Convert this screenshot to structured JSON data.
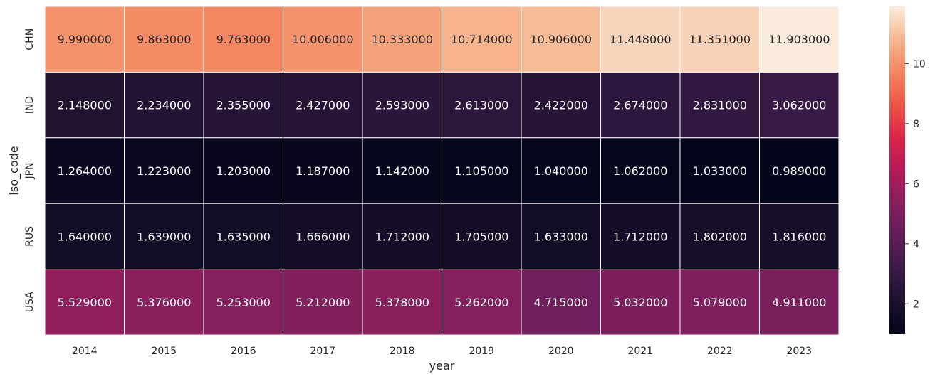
{
  "chart_data": {
    "type": "heatmap",
    "title": "",
    "xlabel": "year",
    "ylabel": "iso_code",
    "x_categories": [
      "2014",
      "2015",
      "2016",
      "2017",
      "2018",
      "2019",
      "2020",
      "2021",
      "2022",
      "2023"
    ],
    "y_categories": [
      "CHN",
      "IND",
      "JPN",
      "RUS",
      "USA"
    ],
    "values": [
      [
        9.99,
        9.863,
        9.763,
        10.006,
        10.333,
        10.714,
        10.906,
        11.448,
        11.351,
        11.903
      ],
      [
        2.148,
        2.234,
        2.355,
        2.427,
        2.593,
        2.613,
        2.422,
        2.674,
        2.831,
        3.062
      ],
      [
        1.264,
        1.223,
        1.203,
        1.187,
        1.142,
        1.105,
        1.04,
        1.062,
        1.033,
        0.989
      ],
      [
        1.64,
        1.639,
        1.635,
        1.666,
        1.712,
        1.705,
        1.633,
        1.712,
        1.802,
        1.816
      ],
      [
        5.529,
        5.376,
        5.253,
        5.212,
        5.378,
        5.262,
        4.715,
        5.032,
        5.079,
        4.911
      ]
    ],
    "cell_labels": [
      [
        "9.990000",
        "9.863000",
        "9.763000",
        "10.006000",
        "10.333000",
        "10.714000",
        "10.906000",
        "11.448000",
        "11.351000",
        "11.903000"
      ],
      [
        "2.148000",
        "2.234000",
        "2.355000",
        "2.427000",
        "2.593000",
        "2.613000",
        "2.422000",
        "2.674000",
        "2.831000",
        "3.062000"
      ],
      [
        "1.264000",
        "1.223000",
        "1.203000",
        "1.187000",
        "1.142000",
        "1.105000",
        "1.040000",
        "1.062000",
        "1.033000",
        "0.989000"
      ],
      [
        "1.640000",
        "1.639000",
        "1.635000",
        "1.666000",
        "1.712000",
        "1.705000",
        "1.633000",
        "1.712000",
        "1.802000",
        "1.816000"
      ],
      [
        "5.529000",
        "5.376000",
        "5.253000",
        "5.212000",
        "5.378000",
        "5.262000",
        "4.715000",
        "5.032000",
        "5.079000",
        "4.911000"
      ]
    ],
    "colorbar": {
      "colormap": "rocket",
      "vmin": 0.989,
      "vmax": 11.903,
      "ticks": [
        2,
        4,
        6,
        8,
        10
      ],
      "tick_labels": [
        "2",
        "4",
        "6",
        "8",
        "10"
      ]
    },
    "grid": false,
    "cell_borders": "#ffffff",
    "legend": "colorbar-right"
  }
}
